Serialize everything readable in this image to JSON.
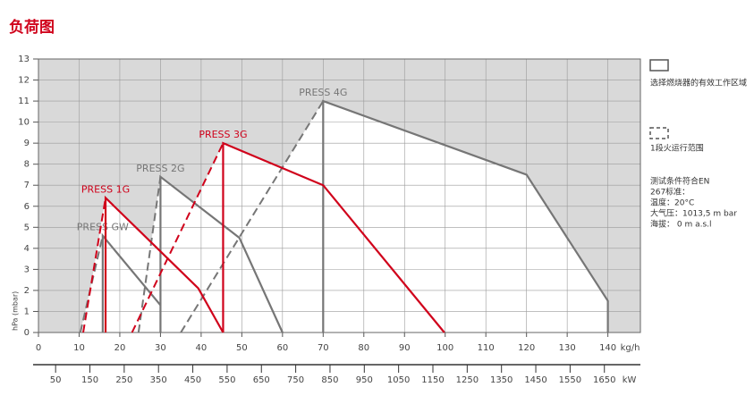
{
  "chart_data": {
    "type": "working-range",
    "title": "负荷图",
    "ylabel": "hPa (mbar)",
    "xlabel": "kg/h",
    "x2label": "kW",
    "xlim": [
      0,
      148
    ],
    "ylim": [
      0,
      13
    ],
    "x2lim": [
      0,
      1755
    ],
    "xticks": [
      0,
      10,
      20,
      30,
      40,
      50,
      60,
      70,
      80,
      90,
      100,
      110,
      120,
      130,
      140
    ],
    "yticks": [
      0,
      1,
      2,
      3,
      4,
      5,
      6,
      7,
      8,
      9,
      10,
      11,
      12,
      13
    ],
    "x2ticks": [
      50,
      150,
      250,
      350,
      450,
      550,
      650,
      750,
      850,
      950,
      1050,
      1150,
      1250,
      1350,
      1450,
      1550,
      1650
    ],
    "grid": true,
    "series": [
      {
        "name": "PRESS 4G",
        "color": "#767676",
        "x": [
          70,
          70,
          120,
          140,
          140
        ],
        "values": [
          0,
          11,
          7.5,
          1.5,
          0
        ],
        "dashed": {
          "x": [
            35,
            70
          ],
          "values": [
            0,
            11
          ]
        }
      },
      {
        "name": "PRESS 2G",
        "color": "#767676",
        "x": [
          30,
          30,
          49.4,
          60
        ],
        "values": [
          0,
          7.4,
          4.5,
          0
        ],
        "dashed": {
          "x": [
            24.6,
            30
          ],
          "values": [
            0,
            7.4
          ]
        }
      },
      {
        "name": "PRESS GW",
        "color": "#767676",
        "x": [
          15.8,
          15.8,
          30
        ],
        "values": [
          0,
          4.6,
          1.3
        ],
        "dashed": {
          "x": [
            10.3,
            15.8
          ],
          "values": [
            0,
            4.6
          ]
        }
      },
      {
        "name": "PRESS 3G",
        "color": "#d0021b",
        "x": [
          45.4,
          45.4,
          70,
          99.8
        ],
        "values": [
          0,
          9,
          7,
          0
        ],
        "dashed": {
          "x": [
            23,
            45.4
          ],
          "values": [
            0,
            9
          ]
        }
      },
      {
        "name": "PRESS 1G",
        "color": "#d0021b",
        "x": [
          16.5,
          16.5,
          39.3,
          45.4
        ],
        "values": [
          0,
          6.4,
          2.1,
          0
        ],
        "dashed": {
          "x": [
            11,
            16.5
          ],
          "values": [
            0,
            6.4
          ]
        }
      }
    ],
    "legend": {
      "working_area": "选择燃烧器的有效工作区域",
      "single_stage": "1段火运行范围"
    },
    "notes": [
      "测试条件符合EN",
      "267标准：",
      "温度：20°C",
      "大气压：1013,5 m bar",
      "海拔：  0 m a.s.l"
    ]
  }
}
